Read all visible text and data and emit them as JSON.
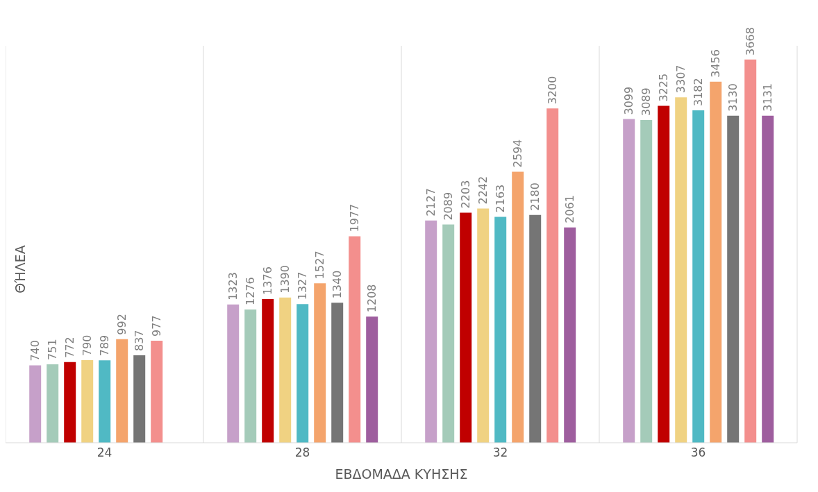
{
  "chart_data": {
    "type": "bar",
    "xlabel": "ΕΒΔΟΜΑΔΑ ΚΥΗΣΗΣ",
    "ylabel": "ΘΉΛΕΑ",
    "categories": [
      "24",
      "28",
      "32",
      "36"
    ],
    "data_labels": true,
    "grid": "x",
    "series": [
      {
        "color": "#c6a0c9",
        "values": [
          740,
          1323,
          2127,
          3099
        ]
      },
      {
        "color": "#a4cbb9",
        "values": [
          751,
          1276,
          2089,
          3089
        ]
      },
      {
        "color": "#c00000",
        "values": [
          772,
          1376,
          2203,
          3225
        ]
      },
      {
        "color": "#f0d282",
        "values": [
          790,
          1390,
          2242,
          3307
        ]
      },
      {
        "color": "#50b9c4",
        "values": [
          789,
          1327,
          2163,
          3182
        ]
      },
      {
        "color": "#f4a46c",
        "values": [
          992,
          1527,
          2594,
          3456
        ]
      },
      {
        "color": "#757575",
        "values": [
          837,
          1340,
          2180,
          3130
        ]
      },
      {
        "color": "#f38f8d",
        "values": [
          977,
          1977,
          3200,
          3668
        ]
      },
      {
        "color": "#9e5e9e",
        "values": [
          null,
          1208,
          2061,
          3131
        ]
      }
    ]
  }
}
